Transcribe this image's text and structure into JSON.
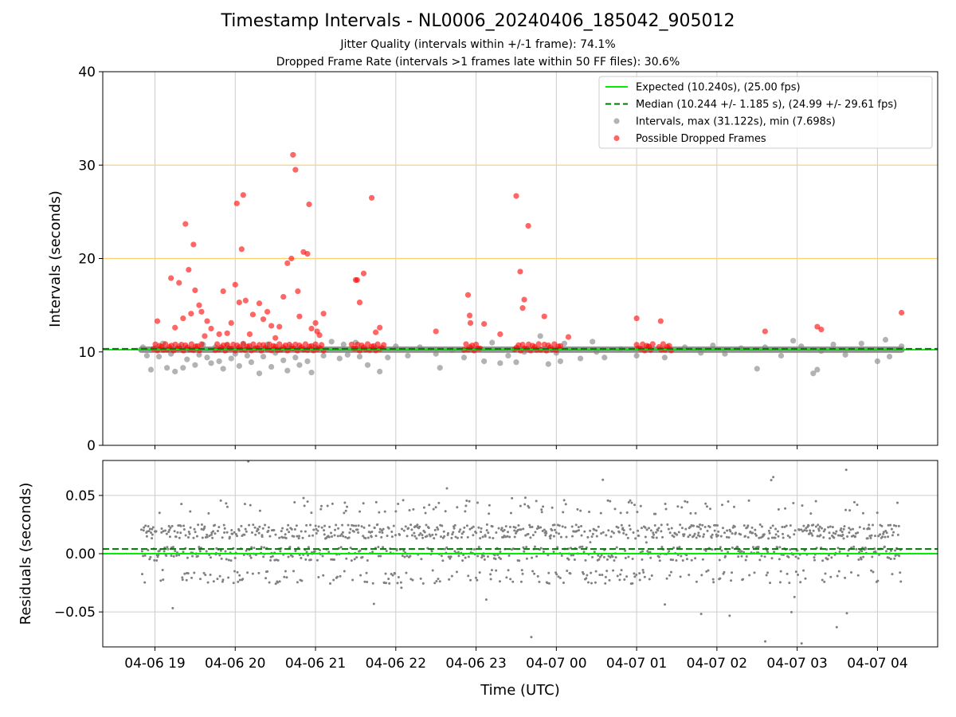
{
  "title": "Timestamp Intervals - NL0006_20240406_185042_905012",
  "subtitle_1": "Jitter Quality (intervals within +/-1 frame): 74.1%",
  "subtitle_2": "Dropped Frame Rate (intervals >1 frames late within 50 FF files): 30.6%",
  "colors": {
    "expected": "#00ee00",
    "median": "#007700",
    "intervals": "#808080",
    "dropped": "#ff0000",
    "threshold": "#ffd070",
    "grid": "#cccccc"
  },
  "chart_data": [
    {
      "type": "scatter",
      "ylabel": "Intervals (seconds)",
      "ylim": [
        0,
        40
      ],
      "y_ticks": [
        "0",
        "10",
        "20",
        "30",
        "40"
      ],
      "x_ticks": [
        "04-06 19",
        "04-06 20",
        "04-06 21",
        "04-06 22",
        "04-06 23",
        "04-07 00",
        "04-07 01",
        "04-07 02",
        "04-07 03",
        "04-07 04"
      ],
      "xlim_hours": [
        18.35,
        28.75
      ],
      "grid": true,
      "legend_position": "top-right",
      "legend": [
        {
          "key": "expected",
          "label": "Expected (10.240s), (25.00 fps)"
        },
        {
          "key": "median",
          "label": "Median (10.244 +/- 1.185 s), (24.99 +/- 29.61 fps)"
        },
        {
          "key": "intervals",
          "label": "Intervals, max (31.122s), min (7.698s)"
        },
        {
          "key": "dropped",
          "label": "Possible Dropped Frames"
        }
      ],
      "expected": 10.24,
      "median": 10.244,
      "threshold_lines": [
        20,
        30
      ],
      "dense_band": {
        "x_start": 18.83,
        "x_end": 28.3,
        "y": 10.24
      },
      "series": [
        {
          "name": "Intervals, max (31.122s), min (7.698s)",
          "points": [
            [
              18.85,
              10.5
            ],
            [
              18.9,
              9.6
            ],
            [
              18.95,
              8.1
            ],
            [
              19.0,
              10.4
            ],
            [
              19.05,
              9.5
            ],
            [
              19.1,
              10.9
            ],
            [
              19.15,
              8.3
            ],
            [
              19.2,
              9.8
            ],
            [
              19.25,
              7.9
            ],
            [
              19.3,
              10.6
            ],
            [
              19.35,
              8.3
            ],
            [
              19.4,
              9.2
            ],
            [
              19.45,
              10.3
            ],
            [
              19.5,
              8.6
            ],
            [
              19.55,
              9.7
            ],
            [
              19.6,
              10.8
            ],
            [
              19.65,
              9.4
            ],
            [
              19.7,
              8.8
            ],
            [
              19.75,
              10.5
            ],
            [
              19.8,
              9.0
            ],
            [
              19.85,
              8.2
            ],
            [
              19.9,
              10.7
            ],
            [
              19.95,
              9.3
            ],
            [
              20.0,
              9.8
            ],
            [
              20.05,
              8.5
            ],
            [
              20.1,
              10.9
            ],
            [
              20.15,
              9.6
            ],
            [
              20.2,
              8.9
            ],
            [
              20.25,
              10.4
            ],
            [
              20.3,
              7.7
            ],
            [
              20.35,
              9.5
            ],
            [
              20.4,
              10.8
            ],
            [
              20.45,
              8.4
            ],
            [
              20.5,
              9.9
            ],
            [
              20.55,
              10.2
            ],
            [
              20.6,
              9.1
            ],
            [
              20.65,
              8.0
            ],
            [
              20.7,
              10.6
            ],
            [
              20.75,
              9.4
            ],
            [
              20.8,
              8.6
            ],
            [
              20.85,
              10.3
            ],
            [
              20.9,
              9.0
            ],
            [
              20.95,
              7.8
            ],
            [
              21.0,
              10.5
            ],
            [
              21.1,
              9.6
            ],
            [
              21.2,
              11.1
            ],
            [
              21.3,
              9.3
            ],
            [
              21.35,
              10.8
            ],
            [
              21.4,
              9.7
            ],
            [
              21.5,
              11.0
            ],
            [
              21.55,
              9.5
            ],
            [
              21.65,
              8.6
            ],
            [
              21.75,
              10.4
            ],
            [
              21.8,
              7.9
            ],
            [
              21.9,
              9.4
            ],
            [
              22.0,
              10.6
            ],
            [
              22.15,
              9.6
            ],
            [
              22.3,
              10.5
            ],
            [
              22.5,
              9.8
            ],
            [
              22.55,
              8.3
            ],
            [
              22.7,
              10.2
            ],
            [
              22.85,
              9.4
            ],
            [
              22.95,
              10.3
            ],
            [
              23.1,
              9.0
            ],
            [
              23.2,
              11.0
            ],
            [
              23.3,
              8.8
            ],
            [
              23.4,
              9.6
            ],
            [
              23.5,
              8.9
            ],
            [
              23.6,
              10.0
            ],
            [
              23.8,
              11.7
            ],
            [
              23.9,
              8.7
            ],
            [
              24.0,
              9.9
            ],
            [
              24.05,
              9.0
            ],
            [
              24.1,
              10.9
            ],
            [
              24.3,
              9.3
            ],
            [
              24.45,
              11.1
            ],
            [
              24.5,
              10.0
            ],
            [
              24.6,
              9.4
            ],
            [
              24.8,
              10.3
            ],
            [
              25.0,
              9.6
            ],
            [
              25.15,
              10.6
            ],
            [
              25.35,
              9.4
            ],
            [
              25.6,
              10.5
            ],
            [
              25.8,
              9.9
            ],
            [
              25.95,
              10.7
            ],
            [
              26.1,
              9.8
            ],
            [
              26.3,
              10.4
            ],
            [
              26.5,
              8.2
            ],
            [
              26.6,
              10.5
            ],
            [
              26.8,
              9.6
            ],
            [
              26.95,
              11.2
            ],
            [
              27.05,
              10.6
            ],
            [
              27.2,
              7.7
            ],
            [
              27.25,
              8.1
            ],
            [
              27.3,
              10.1
            ],
            [
              27.45,
              10.8
            ],
            [
              27.6,
              9.7
            ],
            [
              27.8,
              10.9
            ],
            [
              28.0,
              9.0
            ],
            [
              28.1,
              11.3
            ],
            [
              28.15,
              9.5
            ],
            [
              28.3,
              10.6
            ]
          ]
        },
        {
          "name": "Possible Dropped Frames",
          "points": [
            [
              19.03,
              13.3
            ],
            [
              19.2,
              17.9
            ],
            [
              19.25,
              12.6
            ],
            [
              19.3,
              17.4
            ],
            [
              19.35,
              13.6
            ],
            [
              19.38,
              23.7
            ],
            [
              19.42,
              18.8
            ],
            [
              19.45,
              14.1
            ],
            [
              19.48,
              21.5
            ],
            [
              19.5,
              16.6
            ],
            [
              19.55,
              15.0
            ],
            [
              19.58,
              14.3
            ],
            [
              19.62,
              11.7
            ],
            [
              19.65,
              13.3
            ],
            [
              19.7,
              12.5
            ],
            [
              19.8,
              11.9
            ],
            [
              19.85,
              16.5
            ],
            [
              19.95,
              13.1
            ],
            [
              19.9,
              12.0
            ],
            [
              20.0,
              17.2
            ],
            [
              20.02,
              25.9
            ],
            [
              20.05,
              15.3
            ],
            [
              20.08,
              21.0
            ],
            [
              20.1,
              26.8
            ],
            [
              20.13,
              15.5
            ],
            [
              20.18,
              11.9
            ],
            [
              20.22,
              14.0
            ],
            [
              20.3,
              15.2
            ],
            [
              20.35,
              13.5
            ],
            [
              20.4,
              14.3
            ],
            [
              20.45,
              12.8
            ],
            [
              20.5,
              11.5
            ],
            [
              20.55,
              12.7
            ],
            [
              20.6,
              15.9
            ],
            [
              20.65,
              19.5
            ],
            [
              20.7,
              20.0
            ],
            [
              20.72,
              31.1
            ],
            [
              20.75,
              29.5
            ],
            [
              20.78,
              16.5
            ],
            [
              20.8,
              13.8
            ],
            [
              20.85,
              20.7
            ],
            [
              20.9,
              20.5
            ],
            [
              20.92,
              25.8
            ],
            [
              20.95,
              12.5
            ],
            [
              21.0,
              13.1
            ],
            [
              21.05,
              11.8
            ],
            [
              21.1,
              14.1
            ],
            [
              21.02,
              12.2
            ],
            [
              21.5,
              17.7
            ],
            [
              21.52,
              17.7
            ],
            [
              21.55,
              15.3
            ],
            [
              21.6,
              18.4
            ],
            [
              21.7,
              26.5
            ],
            [
              21.75,
              12.1
            ],
            [
              21.8,
              12.6
            ],
            [
              22.5,
              12.2
            ],
            [
              22.9,
              16.1
            ],
            [
              22.92,
              13.9
            ],
            [
              22.93,
              13.1
            ],
            [
              23.1,
              13.0
            ],
            [
              23.3,
              11.9
            ],
            [
              23.5,
              26.7
            ],
            [
              23.55,
              18.6
            ],
            [
              23.58,
              14.7
            ],
            [
              23.6,
              15.6
            ],
            [
              23.65,
              23.5
            ],
            [
              23.85,
              13.8
            ],
            [
              24.15,
              11.6
            ],
            [
              25.0,
              13.6
            ],
            [
              25.3,
              13.3
            ],
            [
              26.6,
              12.2
            ],
            [
              27.25,
              12.7
            ],
            [
              27.3,
              12.4
            ],
            [
              28.3,
              14.2
            ]
          ]
        }
      ]
    },
    {
      "type": "scatter",
      "xlabel": "Time (UTC)",
      "ylabel": "Residuals (seconds)",
      "ylim": [
        -0.08,
        0.08
      ],
      "y_ticks": [
        "0.05",
        "0.00",
        "−0.05"
      ],
      "median_offset": 0.004,
      "series": [
        {
          "name": "Residuals",
          "color": "#808080",
          "range_hours": [
            18.83,
            28.3
          ],
          "typical_spread": 0.025,
          "count": 1400
        }
      ]
    }
  ]
}
